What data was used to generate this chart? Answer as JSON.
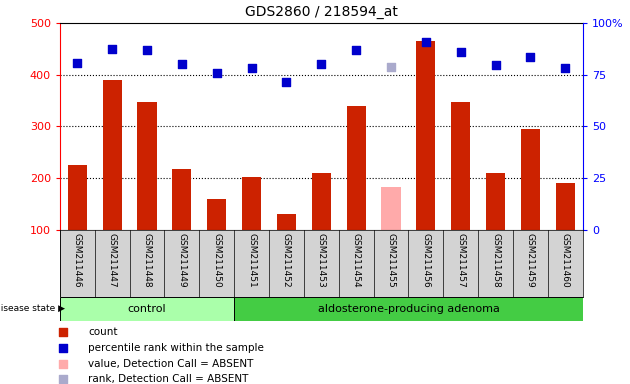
{
  "title": "GDS2860 / 218594_at",
  "samples": [
    "GSM211446",
    "GSM211447",
    "GSM211448",
    "GSM211449",
    "GSM211450",
    "GSM211451",
    "GSM211452",
    "GSM211453",
    "GSM211454",
    "GSM211455",
    "GSM211456",
    "GSM211457",
    "GSM211458",
    "GSM211459",
    "GSM211460"
  ],
  "counts": [
    225,
    390,
    348,
    218,
    160,
    202,
    130,
    210,
    340,
    183,
    465,
    348,
    210,
    295,
    190
  ],
  "percentile_ranks": [
    422,
    450,
    447,
    420,
    403,
    413,
    385,
    420,
    447,
    415,
    463,
    443,
    418,
    435,
    413
  ],
  "absent_mask": [
    false,
    false,
    false,
    false,
    false,
    false,
    false,
    false,
    false,
    true,
    false,
    false,
    false,
    false,
    false
  ],
  "control_count": 5,
  "group_labels": [
    "control",
    "aldosterone-producing adenoma"
  ],
  "group_color_control": "#aaffaa",
  "group_color_adenoma": "#44cc44",
  "left_ylim": [
    100,
    500
  ],
  "left_yticks": [
    100,
    200,
    300,
    400,
    500
  ],
  "right_yticks": [
    0,
    25,
    50,
    75,
    100
  ],
  "right_tick_labels": [
    "0",
    "25",
    "50",
    "75",
    "100%"
  ],
  "bar_color_normal": "#cc2200",
  "bar_color_absent": "#ffaaaa",
  "dot_color_normal": "#0000cc",
  "dot_color_absent": "#aaaacc",
  "bg_color": "#d3d3d3",
  "legend_items": [
    {
      "label": "count",
      "color": "#cc2200",
      "marker": "s"
    },
    {
      "label": "percentile rank within the sample",
      "color": "#0000cc",
      "marker": "s"
    },
    {
      "label": "value, Detection Call = ABSENT",
      "color": "#ffaaaa",
      "marker": "s"
    },
    {
      "label": "rank, Detection Call = ABSENT",
      "color": "#aaaacc",
      "marker": "s"
    }
  ]
}
